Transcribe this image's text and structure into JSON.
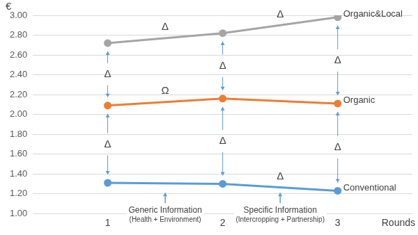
{
  "chart_data": {
    "type": "line",
    "x_label": "Rounds",
    "y_label": "€",
    "x": [
      1,
      2,
      3
    ],
    "xlim": [
      0.35,
      3.65
    ],
    "xticks": [
      1,
      2,
      3
    ],
    "ylim": [
      1,
      3
    ],
    "yticks": [
      {
        "value": 1,
        "label": "1.00"
      },
      {
        "value": 1.2,
        "label": "1.20"
      },
      {
        "value": 1.4,
        "label": "1.40"
      },
      {
        "value": 1.6,
        "label": "1.60"
      },
      {
        "value": 1.8,
        "label": "1.80"
      },
      {
        "value": 2,
        "label": "2.00"
      },
      {
        "value": 2.2,
        "label": "2.20"
      },
      {
        "value": 2.4,
        "label": "2.40"
      },
      {
        "value": 2.6,
        "label": "2.60"
      },
      {
        "value": 2.8,
        "label": "2.80"
      },
      {
        "value": 3,
        "label": "3.00"
      }
    ],
    "grid": true,
    "marker": "circle",
    "series": [
      {
        "name": "Organic&Local",
        "color": "#a5a5a5",
        "values": [
          2.72,
          2.82,
          2.98
        ],
        "segment_labels": [
          "Δ",
          "Δ"
        ]
      },
      {
        "name": "Organic",
        "color": "#ed7d31",
        "values": [
          2.09,
          2.16,
          2.11
        ],
        "segment_labels": [
          "Ω",
          null
        ]
      },
      {
        "name": "Conventional",
        "color": "#5b9bd5",
        "values": [
          1.31,
          1.3,
          1.23
        ],
        "segment_labels": [
          null,
          "Δ"
        ]
      }
    ],
    "difference_labels": [
      {
        "between": [
          "Organic&Local",
          "Organic"
        ],
        "labels": [
          "Δ",
          "Δ",
          "Δ"
        ]
      },
      {
        "between": [
          "Organic",
          "Conventional"
        ],
        "labels": [
          "Δ",
          "Δ",
          "Δ"
        ]
      }
    ],
    "annotations": [
      {
        "text": "Generic Information",
        "subtext": "(Health + Environment)",
        "between": [
          1,
          2
        ]
      },
      {
        "text": "Specific Information",
        "subtext": "(Intercropping + Partnership)",
        "between": [
          2,
          3
        ]
      }
    ]
  }
}
